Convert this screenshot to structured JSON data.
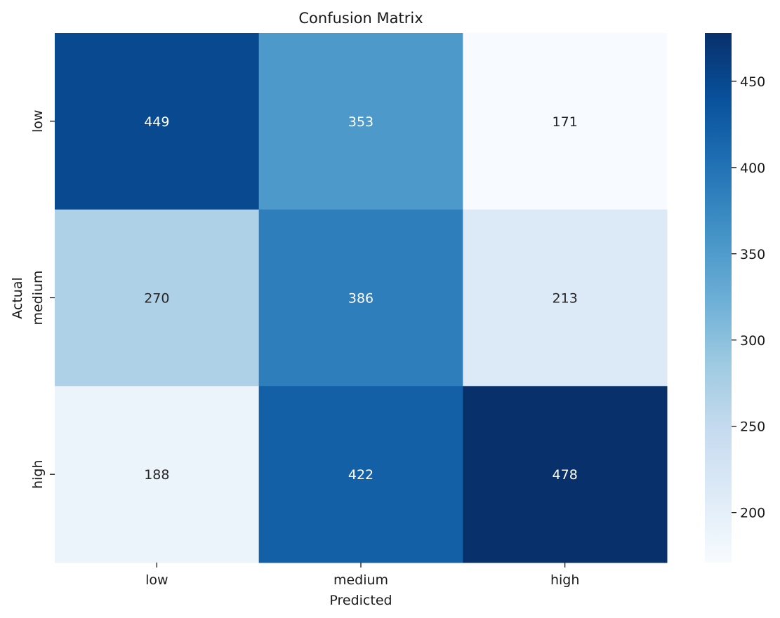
{
  "chart_data": {
    "type": "heatmap",
    "title": "Confusion Matrix",
    "xlabel": "Predicted",
    "ylabel": "Actual",
    "x_categories": [
      "low",
      "medium",
      "high"
    ],
    "y_categories": [
      "low",
      "medium",
      "high"
    ],
    "values": [
      [
        449,
        353,
        171
      ],
      [
        270,
        386,
        213
      ],
      [
        188,
        422,
        478
      ]
    ],
    "colormap": "Blues",
    "colormap_range": [
      171,
      478
    ],
    "colorbar_ticks": [
      200,
      250,
      300,
      350,
      400,
      450
    ],
    "grid": false
  }
}
